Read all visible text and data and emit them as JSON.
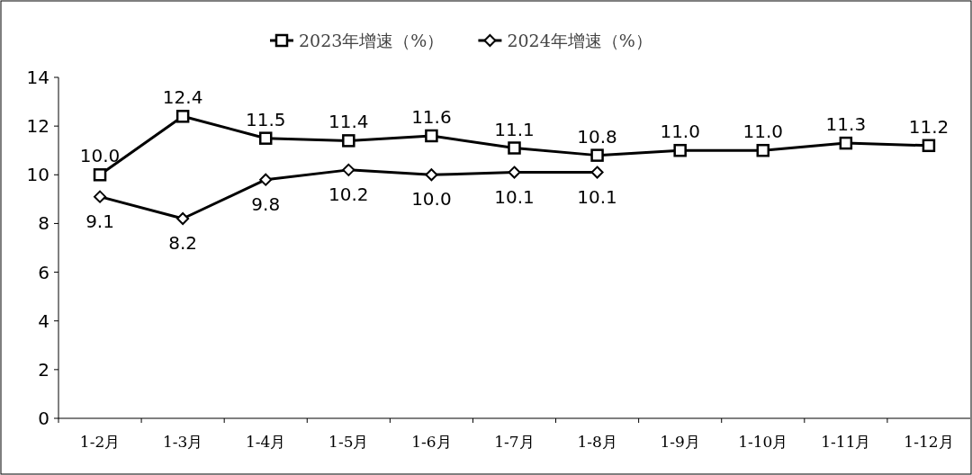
{
  "chart_data": {
    "type": "line",
    "categories": [
      "1-2月",
      "1-3月",
      "1-4月",
      "1-5月",
      "1-6月",
      "1-7月",
      "1-8月",
      "1-9月",
      "1-10月",
      "1-11月",
      "1-12月"
    ],
    "series": [
      {
        "name": "2023年增速（%）",
        "color": "#000000",
        "marker": "square",
        "values": [
          10.0,
          12.4,
          11.5,
          11.4,
          11.6,
          11.1,
          10.8,
          11.0,
          11.0,
          11.3,
          11.2
        ],
        "value_labels": [
          "10.0",
          "12.4",
          "11.5",
          "11.4",
          "11.6",
          "11.1",
          "10.8",
          "11.0",
          "11.0",
          "11.3",
          "11.2"
        ]
      },
      {
        "name": "2024年增速（%）",
        "color": "#000000",
        "marker": "diamond",
        "values": [
          9.1,
          8.2,
          9.8,
          10.2,
          10.0,
          10.1,
          10.1,
          null,
          null,
          null,
          null
        ],
        "value_labels": [
          "9.1",
          "8.2",
          "9.8",
          "10.2",
          "10.0",
          "10.1",
          "10.1",
          null,
          null,
          null,
          null
        ]
      }
    ],
    "ylim": [
      0,
      14
    ],
    "yticks": [
      0,
      2,
      4,
      6,
      8,
      10,
      12,
      14
    ],
    "grid": false,
    "legend": "top",
    "line_style": "solid"
  }
}
